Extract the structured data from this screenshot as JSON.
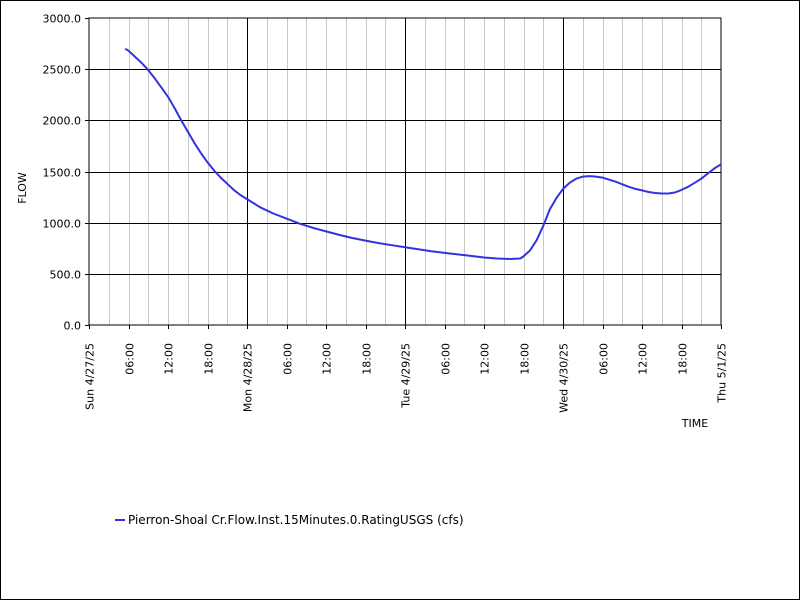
{
  "chart_data": {
    "type": "line",
    "ylabel": "FLOW",
    "xlabel": "TIME",
    "ylim": [
      0,
      3000
    ],
    "y_ticks": [
      "0.0",
      "500.0",
      "1000.0",
      "1500.0",
      "2000.0",
      "2500.0",
      "3000.0"
    ],
    "x_range_hours": [
      0,
      96
    ],
    "x_ticks": [
      {
        "hour": 0,
        "label": "Sun 4/27/25",
        "major": true
      },
      {
        "hour": 6,
        "label": "06:00",
        "major": false
      },
      {
        "hour": 12,
        "label": "12:00",
        "major": false
      },
      {
        "hour": 18,
        "label": "18:00",
        "major": false
      },
      {
        "hour": 24,
        "label": "Mon 4/28/25",
        "major": true
      },
      {
        "hour": 30,
        "label": "06:00",
        "major": false
      },
      {
        "hour": 36,
        "label": "12:00",
        "major": false
      },
      {
        "hour": 42,
        "label": "18:00",
        "major": false
      },
      {
        "hour": 48,
        "label": "Tue 4/29/25",
        "major": true
      },
      {
        "hour": 54,
        "label": "06:00",
        "major": false
      },
      {
        "hour": 60,
        "label": "12:00",
        "major": false
      },
      {
        "hour": 66,
        "label": "18:00",
        "major": false
      },
      {
        "hour": 72,
        "label": "Wed 4/30/25",
        "major": true
      },
      {
        "hour": 78,
        "label": "06:00",
        "major": false
      },
      {
        "hour": 84,
        "label": "12:00",
        "major": false
      },
      {
        "hour": 90,
        "label": "18:00",
        "major": false
      },
      {
        "hour": 96,
        "label": "Thu 5/1/25",
        "major": true
      }
    ],
    "grid": true,
    "legend_position": "bottom-left",
    "series": [
      {
        "name": "Pierron-Shoal Cr.Flow.Inst.15Minutes.0.RatingUSGS (cfs)",
        "color": "#3333dd",
        "x": [
          5.5,
          6,
          7,
          8,
          9,
          10,
          11,
          12,
          13,
          14,
          15,
          16,
          17,
          18,
          19,
          20,
          21,
          22,
          23,
          24,
          26,
          28,
          30,
          32,
          34,
          36,
          38,
          40,
          42,
          44,
          46,
          48,
          50,
          52,
          54,
          56,
          58,
          60,
          62,
          64,
          65.5,
          66,
          67,
          68,
          69,
          70,
          71,
          72,
          73,
          74,
          75,
          76,
          77,
          78,
          79,
          80,
          81,
          82,
          83,
          84,
          85,
          86,
          87,
          88,
          89,
          90,
          91,
          92,
          93,
          94,
          95,
          96
        ],
        "y": [
          2700,
          2680,
          2620,
          2560,
          2490,
          2410,
          2320,
          2230,
          2120,
          2000,
          1890,
          1780,
          1680,
          1590,
          1510,
          1440,
          1380,
          1320,
          1270,
          1230,
          1150,
          1090,
          1040,
          990,
          950,
          915,
          880,
          850,
          825,
          800,
          780,
          760,
          740,
          720,
          705,
          690,
          675,
          660,
          650,
          645,
          650,
          670,
          730,
          830,
          970,
          1130,
          1240,
          1330,
          1390,
          1430,
          1450,
          1455,
          1450,
          1440,
          1420,
          1400,
          1375,
          1350,
          1330,
          1315,
          1300,
          1290,
          1285,
          1285,
          1295,
          1320,
          1350,
          1390,
          1430,
          1480,
          1530,
          1570
        ]
      }
    ]
  }
}
